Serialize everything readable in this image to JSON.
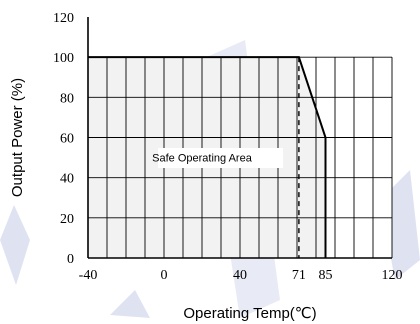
{
  "chart_data": {
    "type": "area",
    "title": "",
    "xlabel": "Operating Temp(℃)",
    "ylabel": "Output Power (%)",
    "xlim": [
      -40,
      120
    ],
    "ylim": [
      0,
      120
    ],
    "x_ticks": [
      "-40",
      "0",
      "40",
      "71",
      "85",
      "120"
    ],
    "y_ticks": [
      "0",
      "20",
      "40",
      "60",
      "80",
      "100",
      "120"
    ],
    "grid": true,
    "series": [
      {
        "x": [
          -40,
          71,
          85,
          85
        ],
        "y": [
          100,
          100,
          60,
          0
        ]
      }
    ],
    "annotations": [
      {
        "text": "Safe Operating Area",
        "x": 20,
        "y": 50
      },
      {
        "text": "",
        "style": "dashed vertical line",
        "x": 71,
        "y_range": [
          0,
          100
        ]
      }
    ],
    "colors": {
      "area_fill": "#f2f2f2",
      "line": "#000000",
      "grid": "#000000",
      "watermark": "#c5cce6"
    }
  }
}
